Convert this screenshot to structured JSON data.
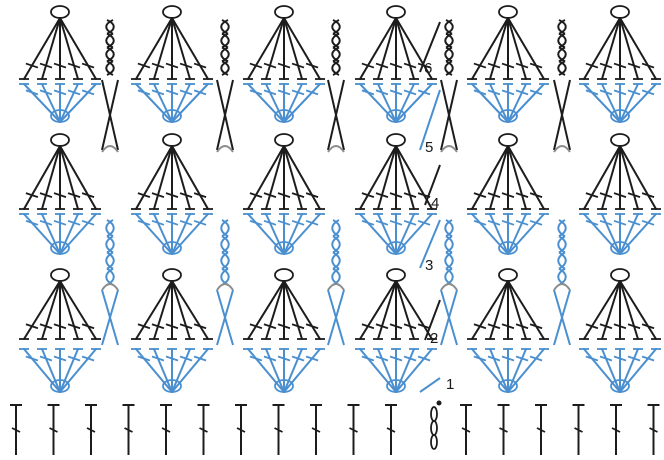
{
  "diagram": {
    "kind": "crochet-stitch-chart",
    "columns": 6,
    "row_labels": [
      "1",
      "2",
      "3",
      "4",
      "5",
      "6"
    ],
    "colors": {
      "blue": "#4a8fcf",
      "black": "#1c1c1c",
      "gray": "#8c8c8c",
      "background": "#ffffff"
    },
    "rows": [
      {
        "label": "1",
        "color": "blue"
      },
      {
        "label": "2",
        "color": "black"
      },
      {
        "label": "3",
        "color": "blue"
      },
      {
        "label": "4",
        "color": "black"
      },
      {
        "label": "5",
        "color": "blue"
      },
      {
        "label": "6",
        "color": "black"
      }
    ],
    "foundation": {
      "stitch": "double-crochet",
      "count": 18,
      "color": "black"
    }
  }
}
